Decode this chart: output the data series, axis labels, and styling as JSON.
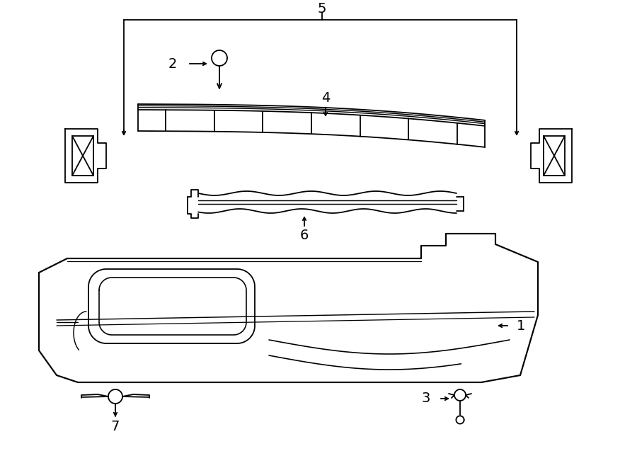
{
  "bg_color": "#ffffff",
  "line_color": "#000000",
  "line_width": 1.3,
  "fig_width": 9.0,
  "fig_height": 6.61
}
